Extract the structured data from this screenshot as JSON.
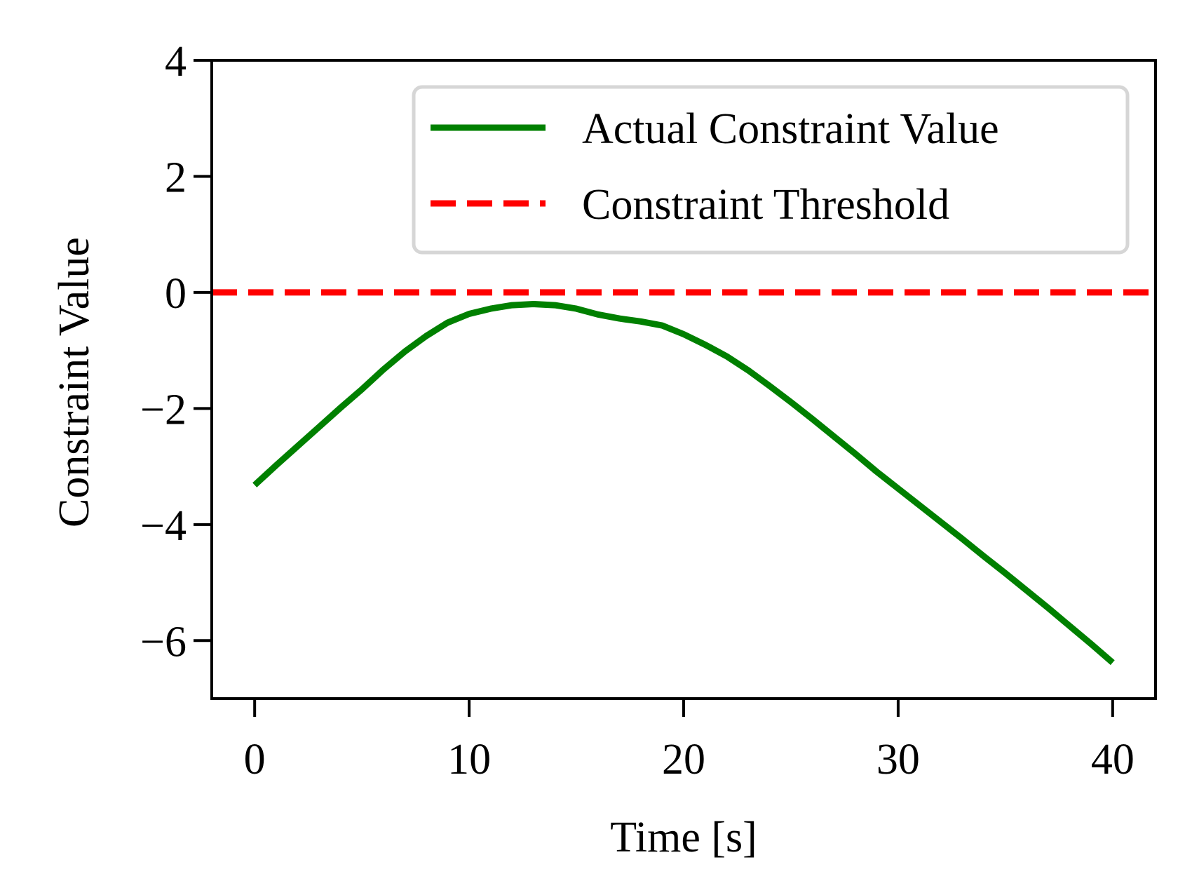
{
  "chart_data": {
    "type": "line",
    "title": "",
    "xlabel": "Time [s]",
    "ylabel": "Constraint Value",
    "xlim": [
      -2,
      42
    ],
    "ylim": [
      -7,
      4
    ],
    "xticks": [
      0,
      10,
      20,
      30,
      40
    ],
    "yticks": [
      4,
      2,
      0,
      -2,
      -4,
      -6
    ],
    "xtick_labels": [
      "0",
      "10",
      "20",
      "30",
      "40"
    ],
    "ytick_labels": [
      "4",
      "2",
      "0",
      "−2",
      "−4",
      "−6"
    ],
    "grid": false,
    "legend_position": "top-right",
    "series": [
      {
        "name": "Actual Constraint Value",
        "color": "#008000",
        "style": "solid",
        "x": [
          0,
          1,
          2,
          3,
          4,
          5,
          6,
          7,
          8,
          9,
          10,
          11,
          12,
          13,
          14,
          15,
          16,
          17,
          18,
          19,
          20,
          21,
          22,
          23,
          24,
          25,
          26,
          27,
          28,
          29,
          30,
          31,
          32,
          33,
          34,
          35,
          36,
          37,
          38,
          39,
          40
        ],
        "y": [
          -3.32,
          -2.98,
          -2.65,
          -2.32,
          -1.99,
          -1.67,
          -1.33,
          -1.02,
          -0.75,
          -0.52,
          -0.37,
          -0.28,
          -0.22,
          -0.2,
          -0.22,
          -0.28,
          -0.38,
          -0.45,
          -0.5,
          -0.57,
          -0.72,
          -0.9,
          -1.1,
          -1.34,
          -1.61,
          -1.89,
          -2.18,
          -2.48,
          -2.78,
          -3.09,
          -3.38,
          -3.67,
          -3.96,
          -4.25,
          -4.55,
          -4.84,
          -5.14,
          -5.44,
          -5.75,
          -6.06,
          -6.38
        ]
      },
      {
        "name": "Constraint Threshold",
        "color": "#ff0000",
        "style": "dashed",
        "x": [
          -2,
          42
        ],
        "y": [
          0,
          0
        ]
      }
    ]
  }
}
